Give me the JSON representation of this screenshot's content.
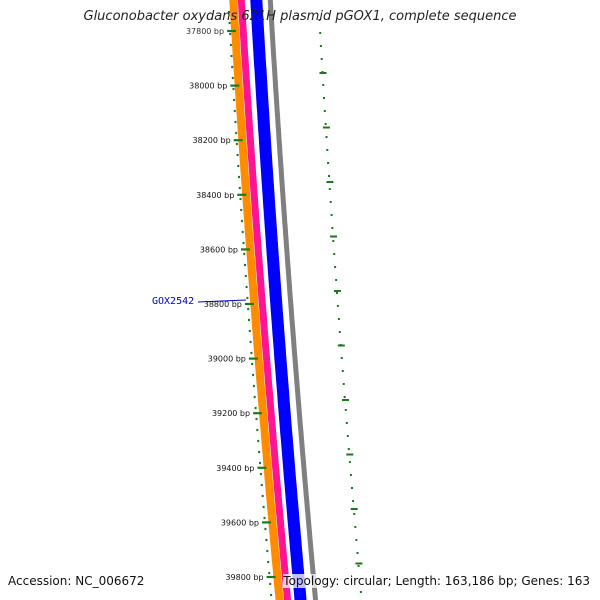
{
  "title": "Gluconobacter oxydans 621H plasmid pGOX1, complete sequence",
  "accession": "Accession: NC_006672",
  "summary": "Topology: circular; Length: 163,186 bp; Genes: 163",
  "ruler": {
    "unit": "bp",
    "labels": [
      "37800 bp",
      "38000 bp",
      "38200 bp",
      "38400 bp",
      "38600 bp",
      "38800 bp",
      "39000 bp",
      "39200 bp",
      "39400 bp",
      "39600 bp",
      "39800 bp"
    ]
  },
  "gene_label": "GOX2542",
  "colors": {
    "orange": "#ff8c00",
    "pink": "#ff1493",
    "blue": "#0000ff",
    "gray": "#808080",
    "ticks": "#1a7a1a",
    "gene_label": "#0000cc"
  }
}
